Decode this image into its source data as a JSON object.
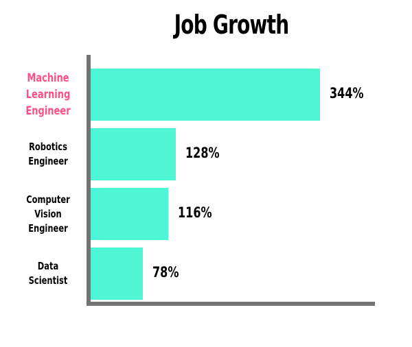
{
  "chart_data": {
    "type": "bar",
    "orientation": "horizontal",
    "title": "Job Growth",
    "xlabel": "",
    "ylabel": "",
    "categories": [
      "Machine Learning Engineer",
      "Robotics Engineer",
      "Computer Vision Engineer",
      "Data Scientist"
    ],
    "values": [
      344,
      128,
      116,
      78
    ],
    "value_labels": [
      "344%",
      "128%",
      "116%",
      "78%"
    ],
    "unit": "%",
    "grid": false,
    "legend": null,
    "highlighted_category": "Machine Learning Engineer"
  },
  "colors": {
    "bar": "#4df5d2",
    "highlight_label": "#ff4f85",
    "axis": "#737373",
    "text": "#000000"
  },
  "labels": {
    "title": "Job Growth",
    "cat0": [
      "Machine",
      "Learning",
      "Engineer"
    ],
    "cat1": [
      "Robotics",
      "Engineer"
    ],
    "cat2": [
      "Computer",
      "Vision",
      "Engineer"
    ],
    "cat3": [
      "Data",
      "Scientist"
    ]
  }
}
